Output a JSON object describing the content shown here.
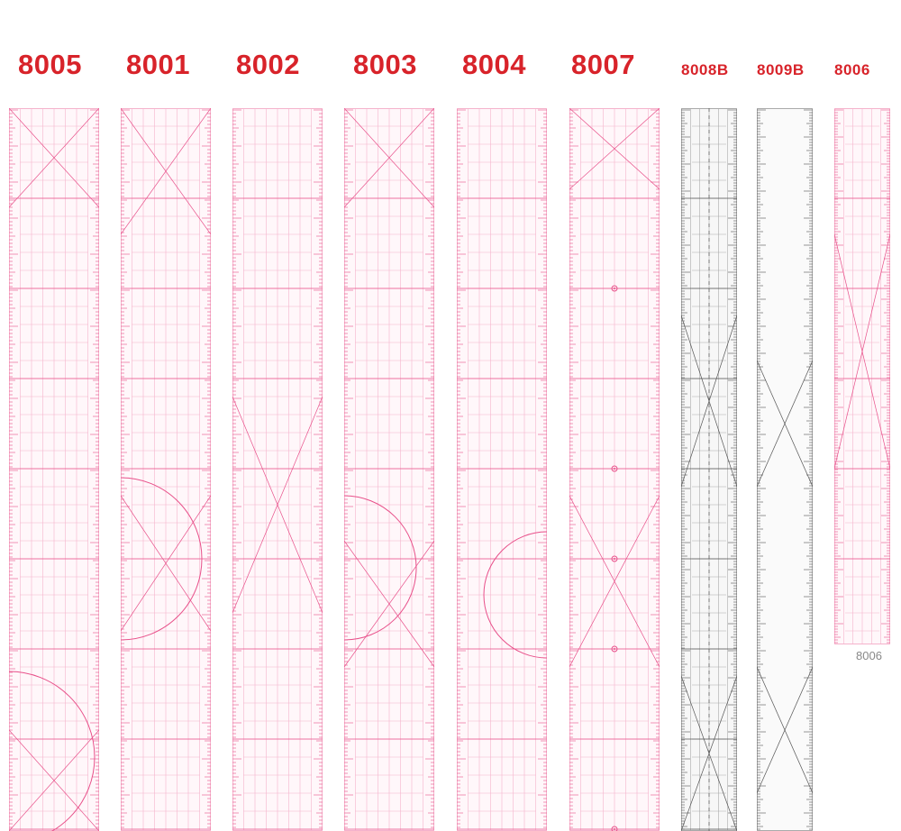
{
  "colors": {
    "label_red": "#d8232a",
    "pink_line": "#e8508a",
    "pink_light": "#f5b3cc",
    "gray_line": "#555555"
  },
  "rulers": [
    {
      "label": "8005",
      "color": "pink"
    },
    {
      "label": "8001",
      "color": "pink"
    },
    {
      "label": "8002",
      "color": "pink"
    },
    {
      "label": "8003",
      "color": "pink"
    },
    {
      "label": "8004",
      "color": "pink"
    },
    {
      "label": "8007",
      "color": "pink"
    },
    {
      "label": "8008B",
      "color": "gray"
    },
    {
      "label": "8009B",
      "color": "gray"
    },
    {
      "label": "8006",
      "color": "pink"
    }
  ],
  "caption_8006": "8006"
}
